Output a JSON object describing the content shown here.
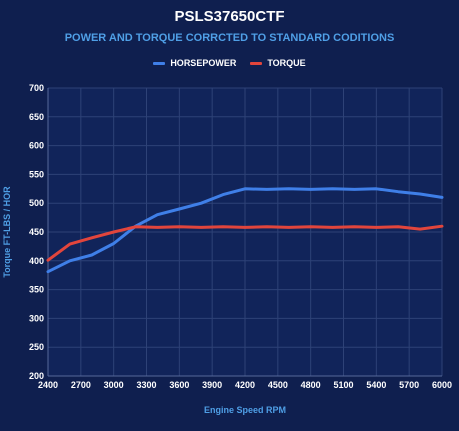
{
  "chart_data": {
    "type": "line",
    "title": "PSLS37650CTF",
    "subtitle": "POWER AND TORQUE CORRCTED TO STANDARD CODITIONS",
    "xlabel": "Engine Speed RPM",
    "ylabel": "Torque FT-LBS / HOR",
    "xlim": [
      2400,
      6000
    ],
    "ylim": [
      200,
      700
    ],
    "xticks": [
      2400,
      2700,
      3000,
      3300,
      3600,
      3900,
      4200,
      4500,
      4800,
      5100,
      5400,
      5700,
      6000
    ],
    "yticks": [
      200,
      250,
      300,
      350,
      400,
      450,
      500,
      550,
      600,
      650,
      700
    ],
    "grid": true,
    "legend": "top-center",
    "x": [
      2400,
      2600,
      2800,
      3000,
      3200,
      3400,
      3600,
      3800,
      4000,
      4200,
      4400,
      4600,
      4800,
      5000,
      5200,
      5400,
      5600,
      5800,
      6000
    ],
    "series": [
      {
        "name": "HORSEPOWER",
        "color": "#3f7fe8",
        "values": [
          381,
          400,
          410,
          430,
          460,
          480,
          490,
          500,
          515,
          525,
          524,
          525,
          524,
          525,
          524,
          525,
          520,
          516,
          510
        ]
      },
      {
        "name": "TORQUE",
        "color": "#e2453c",
        "values": [
          401,
          429,
          440,
          450,
          459,
          458,
          459,
          458,
          459,
          458,
          459,
          458,
          459,
          458,
          459,
          458,
          459,
          455,
          460
        ]
      }
    ]
  }
}
